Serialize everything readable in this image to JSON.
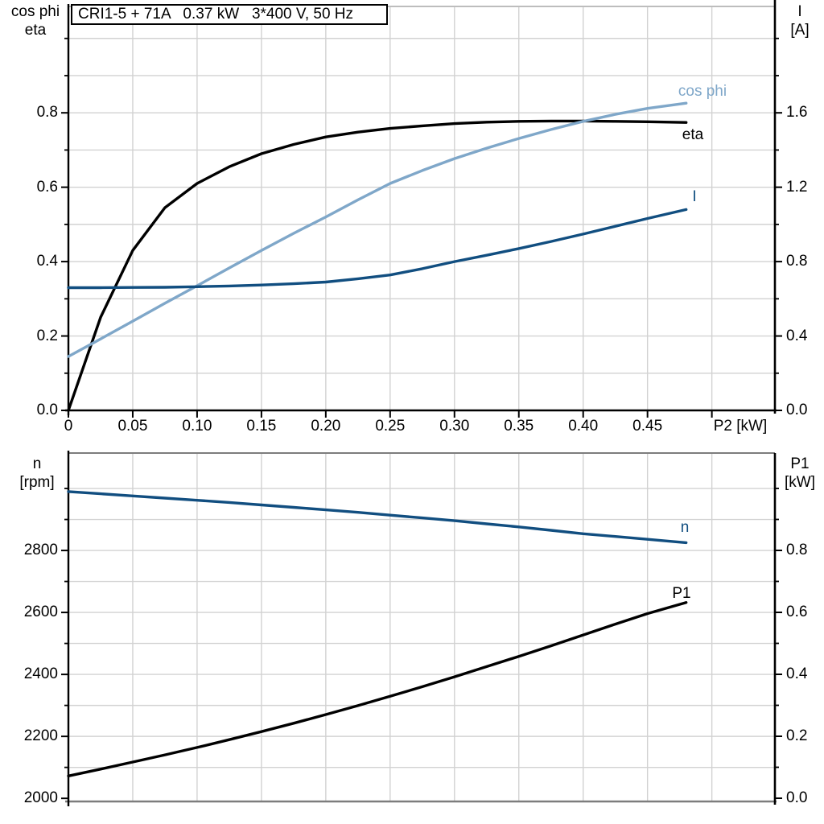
{
  "colors": {
    "black": "#000000",
    "dark_blue": "#114e80",
    "light_blue": "#7fa7c9",
    "grid": "#d2d2d2",
    "frame_dark": "#7d7d7d",
    "frame_light": "#bdbdbd",
    "axis": "#000000",
    "background": "#ffffff"
  },
  "chart_data": [
    {
      "type": "line",
      "title": "CRI1-5 + 71A   0.37 kW   3*400 V, 50 Hz",
      "xlabel": "P2 [kW]",
      "ylabel_left_lines": [
        "cos phi",
        "eta"
      ],
      "ylabel_right_lines": [
        "I",
        "[A]"
      ],
      "xlim": [
        0,
        0.549
      ],
      "ylim_left": [
        0,
        1.086
      ],
      "ylim_right": [
        0,
        2.172
      ],
      "grid": true,
      "legend_position": "labels-at-curve-ends",
      "x_ticks": [
        0,
        0.05,
        0.1,
        0.15,
        0.2,
        0.25,
        0.3,
        0.35,
        0.4,
        0.45
      ],
      "x_tick_labels": [
        "0",
        "0.05",
        "0.10",
        "0.15",
        "0.20",
        "0.25",
        "0.30",
        "0.35",
        "0.40",
        "0.45"
      ],
      "x_minor_ticks": [
        0.5
      ],
      "grid_x": [
        0.05,
        0.1,
        0.15,
        0.2,
        0.25,
        0.3,
        0.35,
        0.4,
        0.45,
        0.5
      ],
      "left_ticks": [
        0.0,
        0.2,
        0.4,
        0.6,
        0.8
      ],
      "left_tick_labels": [
        "0.0",
        "0.2",
        "0.4",
        "0.6",
        "0.8"
      ],
      "left_minor_ticks": [
        0.1,
        0.3,
        0.5,
        0.7,
        0.9,
        1.0
      ],
      "grid_left": [
        0.1,
        0.2,
        0.3,
        0.4,
        0.5,
        0.6,
        0.7,
        0.8,
        0.9,
        1.0
      ],
      "right_ticks": [
        0.0,
        0.4,
        0.8,
        1.2,
        1.6
      ],
      "right_tick_labels": [
        "0.0",
        "0.4",
        "0.8",
        "1.2",
        "1.6"
      ],
      "right_minor_ticks": [
        0.2,
        0.6,
        1.0,
        1.4,
        1.8,
        2.0
      ],
      "x": [
        0,
        0.025,
        0.05,
        0.075,
        0.1,
        0.125,
        0.15,
        0.175,
        0.2,
        0.225,
        0.25,
        0.275,
        0.3,
        0.325,
        0.35,
        0.375,
        0.4,
        0.425,
        0.45,
        0.48
      ],
      "series": [
        {
          "name": "eta",
          "axis": "left",
          "color": "black",
          "values": [
            0,
            0.25,
            0.43,
            0.545,
            0.61,
            0.655,
            0.69,
            0.715,
            0.735,
            0.748,
            0.758,
            0.765,
            0.771,
            0.775,
            0.777,
            0.778,
            0.778,
            0.777,
            0.776,
            0.774
          ]
        },
        {
          "name": "cos phi",
          "axis": "left",
          "color": "light_blue",
          "values": [
            0.145,
            0.192,
            0.24,
            0.288,
            0.335,
            0.383,
            0.43,
            0.476,
            0.52,
            0.566,
            0.61,
            0.645,
            0.677,
            0.705,
            0.731,
            0.755,
            0.777,
            0.796,
            0.812,
            0.826
          ]
        },
        {
          "name": "I",
          "axis": "right",
          "color": "dark_blue",
          "values": [
            0.66,
            0.66,
            0.661,
            0.662,
            0.665,
            0.669,
            0.674,
            0.681,
            0.69,
            0.708,
            0.728,
            0.762,
            0.8,
            0.834,
            0.87,
            0.908,
            0.948,
            0.99,
            1.032,
            1.08
          ]
        }
      ]
    },
    {
      "type": "line",
      "title": "",
      "xlabel": "",
      "ylabel_left_lines": [
        "n",
        "[rpm]"
      ],
      "ylabel_right_lines": [
        "P1",
        "[kW]"
      ],
      "xlim": [
        0,
        0.549
      ],
      "ylim_left": [
        1990,
        3114.4
      ],
      "ylim_right": [
        -0.0104,
        1.1143
      ],
      "grid": true,
      "legend_position": "labels-at-curve-ends",
      "x_ticks": [],
      "x_tick_labels": [],
      "x_minor_ticks": [],
      "grid_x": [
        0.05,
        0.1,
        0.15,
        0.2,
        0.25,
        0.3,
        0.35,
        0.4,
        0.45,
        0.5
      ],
      "left_ticks": [
        2000,
        2200,
        2400,
        2600,
        2800
      ],
      "left_tick_labels": [
        "2000",
        "2200",
        "2400",
        "2600",
        "2800"
      ],
      "left_minor_ticks": [
        2100,
        2300,
        2500,
        2700,
        2900,
        3000
      ],
      "grid_left": [
        2100,
        2200,
        2300,
        2400,
        2500,
        2600,
        2700,
        2800,
        2900,
        3000
      ],
      "right_ticks": [
        0.0,
        0.2,
        0.4,
        0.6,
        0.8
      ],
      "right_tick_labels": [
        "0.0",
        "0.2",
        "0.4",
        "0.6",
        "0.8"
      ],
      "right_minor_ticks": [
        0.1,
        0.3,
        0.5,
        0.7,
        0.9,
        1.0
      ],
      "x": [
        0,
        0.025,
        0.05,
        0.075,
        0.1,
        0.125,
        0.15,
        0.175,
        0.2,
        0.225,
        0.25,
        0.275,
        0.3,
        0.325,
        0.35,
        0.375,
        0.4,
        0.425,
        0.45,
        0.48
      ],
      "series": [
        {
          "name": "n",
          "axis": "left",
          "color": "dark_blue",
          "values": [
            2990,
            2983,
            2976,
            2969,
            2962,
            2955,
            2947,
            2939,
            2931,
            2923,
            2914,
            2905,
            2896,
            2886,
            2876,
            2865,
            2854,
            2845,
            2836,
            2825
          ]
        },
        {
          "name": "P1",
          "axis": "right",
          "color": "black",
          "values": [
            0.072,
            0.094,
            0.117,
            0.14,
            0.164,
            0.189,
            0.215,
            0.242,
            0.27,
            0.299,
            0.329,
            0.36,
            0.392,
            0.425,
            0.458,
            0.492,
            0.527,
            0.562,
            0.596,
            0.632
          ]
        }
      ]
    }
  ]
}
